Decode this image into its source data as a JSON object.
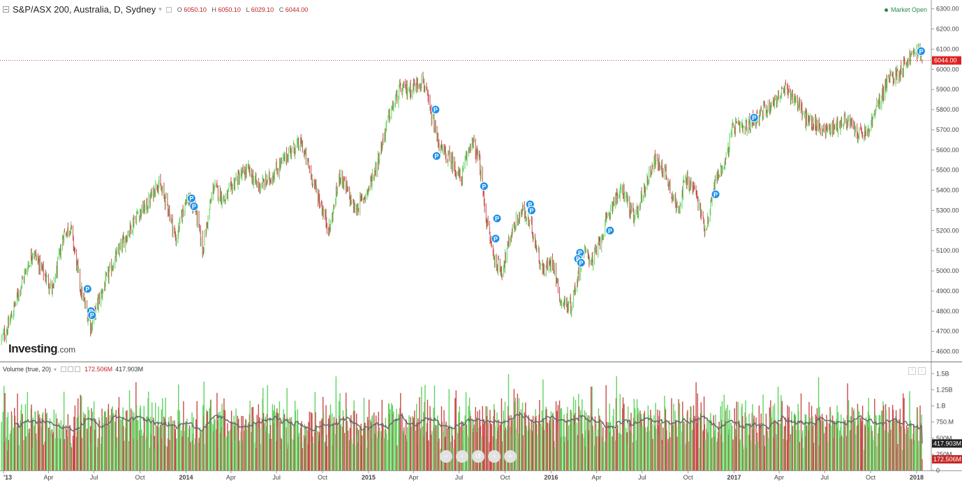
{
  "header": {
    "symbol": "S&P/ASX 200, Australia, D, Sydney",
    "ohlc": [
      {
        "label": "O",
        "value": "6050.10"
      },
      {
        "label": "H",
        "value": "6050.10"
      },
      {
        "label": "L",
        "value": "6029.10"
      },
      {
        "label": "C",
        "value": "6044.00"
      }
    ],
    "status": "Market Open"
  },
  "volume_legend": {
    "title": "Volume (true, 20)",
    "value1": "172.506M",
    "value2": "417.903M"
  },
  "logo": {
    "main": "Investing",
    "suffix": ".com"
  },
  "nav_icons": [
    "zoom-out-icon",
    "scroll-left-icon",
    "reset-icon",
    "scroll-right-icon",
    "zoom-in-icon"
  ],
  "colors": {
    "up": "#5fd35f",
    "down": "#c94a4a",
    "ma": "#6b6b6b",
    "price_line": "#e02020",
    "marker": "#1e90e8"
  },
  "chart_data": [
    {
      "type": "candlestick",
      "title": "S&P/ASX 200, Australia, D, Sydney",
      "ylim": [
        4550,
        6330
      ],
      "y_ticks": [
        4600,
        4700,
        4800,
        4900,
        5000,
        5100,
        5200,
        5300,
        5400,
        5500,
        5600,
        5700,
        5800,
        5900,
        6000,
        6100,
        6200,
        6300
      ],
      "x_ticks": [
        "'13",
        "Apr",
        "Jul",
        "Oct",
        "2014",
        "Apr",
        "Jul",
        "Oct",
        "2015",
        "Apr",
        "Jul",
        "Oct",
        "2016",
        "Apr",
        "Jul",
        "Oct",
        "2017",
        "Apr",
        "Jul",
        "Oct",
        "2018"
      ],
      "x_tick_dates": [
        "2013-01-01",
        "2013-04-01",
        "2013-07-01",
        "2013-10-01",
        "2014-01-01",
        "2014-04-01",
        "2014-07-01",
        "2014-10-01",
        "2015-01-01",
        "2015-04-01",
        "2015-07-01",
        "2015-10-01",
        "2016-01-01",
        "2016-04-01",
        "2016-07-01",
        "2016-10-01",
        "2017-01-01",
        "2017-04-01",
        "2017-07-01",
        "2017-10-01",
        "2018-01-01"
      ],
      "last_price": 6044.0,
      "last_price_label": "6044.00",
      "close_path": [
        [
          "2012-12-28",
          4660
        ],
        [
          "2013-01-10",
          4720
        ],
        [
          "2013-02-05",
          4930
        ],
        [
          "2013-03-01",
          5100
        ],
        [
          "2013-03-20",
          5000
        ],
        [
          "2013-04-10",
          4900
        ],
        [
          "2013-05-01",
          5180
        ],
        [
          "2013-05-15",
          5220
        ],
        [
          "2013-06-05",
          4900
        ],
        [
          "2013-06-25",
          4720
        ],
        [
          "2013-07-10",
          4850
        ],
        [
          "2013-08-05",
          5020
        ],
        [
          "2013-08-30",
          5150
        ],
        [
          "2013-09-25",
          5280
        ],
        [
          "2013-10-15",
          5320
        ],
        [
          "2013-11-05",
          5440
        ],
        [
          "2013-11-25",
          5330
        ],
        [
          "2013-12-12",
          5150
        ],
        [
          "2013-12-31",
          5360
        ],
        [
          "2014-01-20",
          5310
        ],
        [
          "2014-02-03",
          5100
        ],
        [
          "2014-02-25",
          5420
        ],
        [
          "2014-03-20",
          5350
        ],
        [
          "2014-04-10",
          5450
        ],
        [
          "2014-05-05",
          5500
        ],
        [
          "2014-05-25",
          5420
        ],
        [
          "2014-06-15",
          5450
        ],
        [
          "2014-07-10",
          5530
        ],
        [
          "2014-07-30",
          5600
        ],
        [
          "2014-08-20",
          5630
        ],
        [
          "2014-09-05",
          5500
        ],
        [
          "2014-09-25",
          5350
        ],
        [
          "2014-10-15",
          5200
        ],
        [
          "2014-11-05",
          5480
        ],
        [
          "2014-12-05",
          5300
        ],
        [
          "2014-12-31",
          5400
        ],
        [
          "2015-01-20",
          5550
        ],
        [
          "2015-02-10",
          5760
        ],
        [
          "2015-03-05",
          5900
        ],
        [
          "2015-03-25",
          5900
        ],
        [
          "2015-04-20",
          5950
        ],
        [
          "2015-05-05",
          5780
        ],
        [
          "2015-05-25",
          5600
        ],
        [
          "2015-06-15",
          5550
        ],
        [
          "2015-07-05",
          5450
        ],
        [
          "2015-07-25",
          5650
        ],
        [
          "2015-08-10",
          5550
        ],
        [
          "2015-08-25",
          5250
        ],
        [
          "2015-09-10",
          5050
        ],
        [
          "2015-09-25",
          5000
        ],
        [
          "2015-10-15",
          5200
        ],
        [
          "2015-11-05",
          5300
        ],
        [
          "2015-11-25",
          5200
        ],
        [
          "2015-12-15",
          5000
        ],
        [
          "2016-01-05",
          5050
        ],
        [
          "2016-01-20",
          4850
        ],
        [
          "2016-02-10",
          4820
        ],
        [
          "2016-03-05",
          5100
        ],
        [
          "2016-03-25",
          5050
        ],
        [
          "2016-04-15",
          5200
        ],
        [
          "2016-05-05",
          5350
        ],
        [
          "2016-05-25",
          5400
        ],
        [
          "2016-06-15",
          5250
        ],
        [
          "2016-07-05",
          5400
        ],
        [
          "2016-07-25",
          5550
        ],
        [
          "2016-08-15",
          5500
        ],
        [
          "2016-09-10",
          5300
        ],
        [
          "2016-09-25",
          5450
        ],
        [
          "2016-10-15",
          5400
        ],
        [
          "2016-11-05",
          5200
        ],
        [
          "2016-11-25",
          5450
        ],
        [
          "2016-12-15",
          5550
        ],
        [
          "2016-12-31",
          5720
        ],
        [
          "2017-01-20",
          5700
        ],
        [
          "2017-02-10",
          5750
        ],
        [
          "2017-03-05",
          5800
        ],
        [
          "2017-03-25",
          5850
        ],
        [
          "2017-04-15",
          5900
        ],
        [
          "2017-05-05",
          5850
        ],
        [
          "2017-05-25",
          5750
        ],
        [
          "2017-06-15",
          5720
        ],
        [
          "2017-07-05",
          5700
        ],
        [
          "2017-07-25",
          5720
        ],
        [
          "2017-08-15",
          5750
        ],
        [
          "2017-09-05",
          5680
        ],
        [
          "2017-09-25",
          5680
        ],
        [
          "2017-10-15",
          5820
        ],
        [
          "2017-11-05",
          5950
        ],
        [
          "2017-11-25",
          5980
        ],
        [
          "2017-12-15",
          6050
        ],
        [
          "2018-01-05",
          6100
        ],
        [
          "2018-01-12",
          6040
        ]
      ],
      "markers": [
        {
          "date": "2013-06-18",
          "value": 4910,
          "label": "P"
        },
        {
          "date": "2013-06-25",
          "value": 4800,
          "label": "P"
        },
        {
          "date": "2013-06-27",
          "value": 4780,
          "label": "P"
        },
        {
          "date": "2014-01-12",
          "value": 5360,
          "label": "P"
        },
        {
          "date": "2014-01-17",
          "value": 5320,
          "label": "P"
        },
        {
          "date": "2015-05-15",
          "value": 5800,
          "label": "P"
        },
        {
          "date": "2015-05-17",
          "value": 5570,
          "label": "P"
        },
        {
          "date": "2015-08-20",
          "value": 5420,
          "label": "P"
        },
        {
          "date": "2015-09-15",
          "value": 5260,
          "label": "P"
        },
        {
          "date": "2015-09-12",
          "value": 5160,
          "label": "P"
        },
        {
          "date": "2015-11-20",
          "value": 5330,
          "label": "P"
        },
        {
          "date": "2015-11-23",
          "value": 5300,
          "label": "P"
        },
        {
          "date": "2016-02-28",
          "value": 5090,
          "label": "P"
        },
        {
          "date": "2016-02-24",
          "value": 5060,
          "label": "P"
        },
        {
          "date": "2016-03-01",
          "value": 5040,
          "label": "P"
        },
        {
          "date": "2016-04-28",
          "value": 5200,
          "label": "P"
        },
        {
          "date": "2016-11-25",
          "value": 5380,
          "label": "P"
        },
        {
          "date": "2017-02-10",
          "value": 5760,
          "label": "P"
        },
        {
          "date": "2018-01-10",
          "value": 6090,
          "label": "P"
        }
      ]
    },
    {
      "type": "bar",
      "title": "Volume (true, 20)",
      "ylim": [
        0,
        1600
      ],
      "y_ticks": [
        0,
        250,
        500,
        750,
        1000,
        1250,
        1500
      ],
      "y_tick_labels": [
        "0",
        "250M",
        "500M",
        "750.M",
        "1.B",
        "1.25B",
        "1.5B"
      ],
      "value_unit": "M",
      "ma_period": 20,
      "last_volume": 172.506,
      "last_ma": 417.903,
      "typical_range": [
        300,
        1300
      ]
    }
  ]
}
